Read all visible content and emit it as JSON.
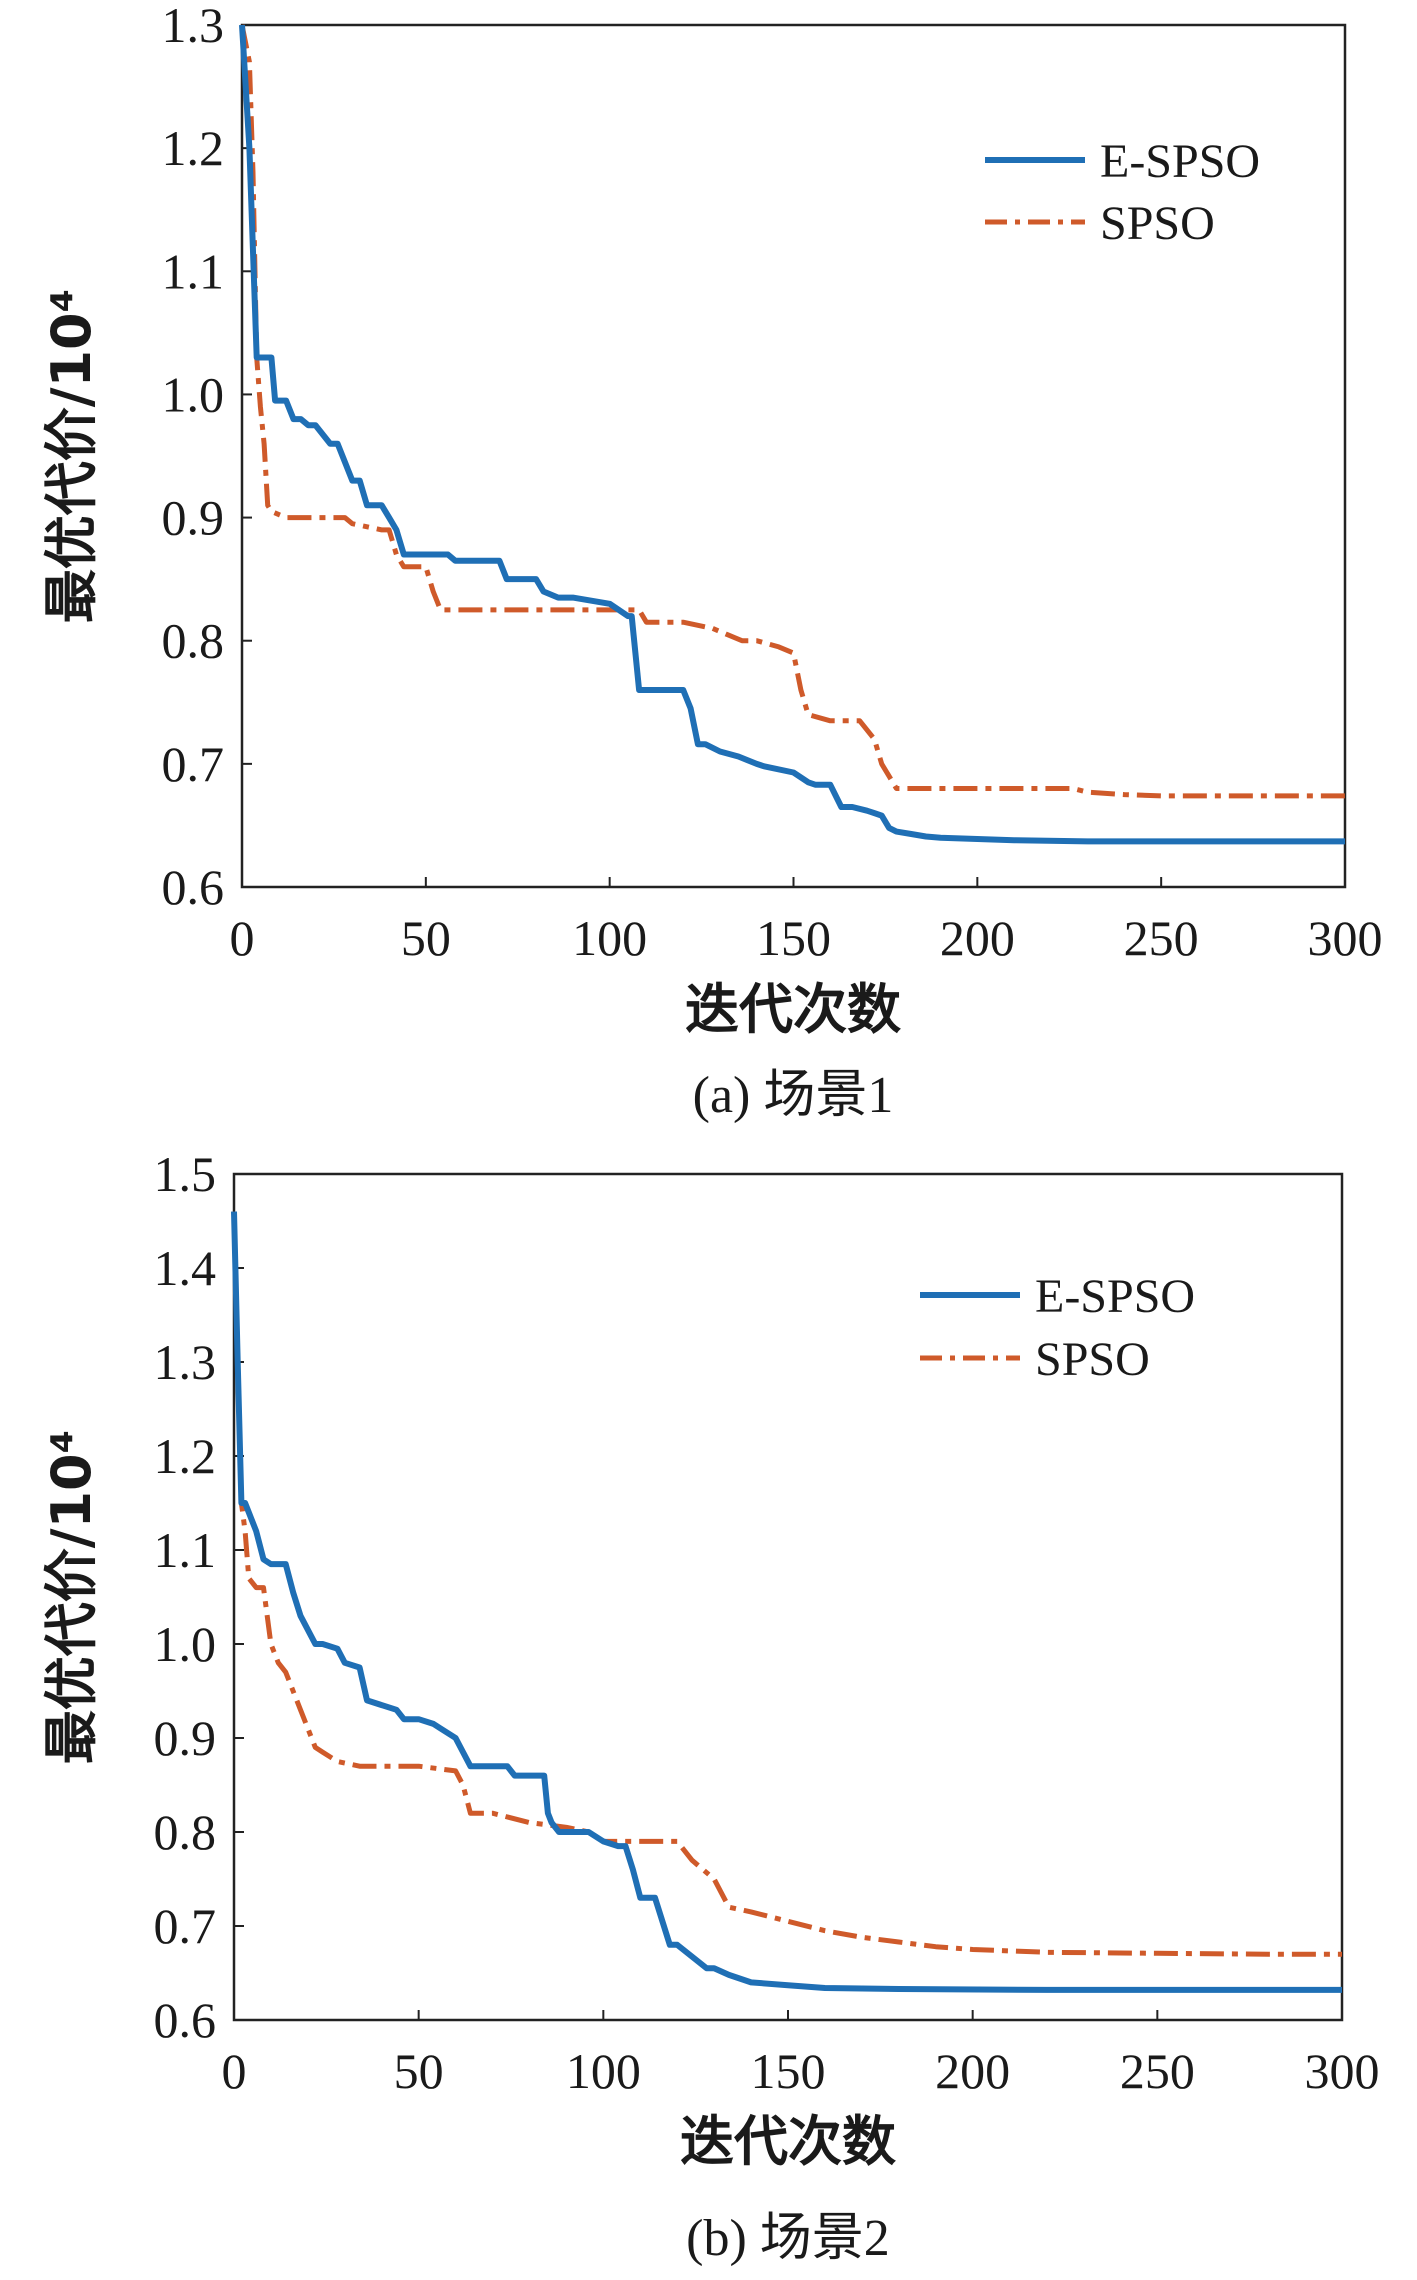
{
  "chart_data": [
    {
      "type": "line",
      "caption": "(a) 场景1",
      "xlabel": "迭代次数",
      "ylabel": "最优代价/10⁴",
      "xlim": [
        0,
        300
      ],
      "ylim": [
        0.6,
        1.3
      ],
      "xticks": [
        "0",
        "50",
        "100",
        "150",
        "200",
        "250",
        "300"
      ],
      "yticks": [
        "0.6",
        "0.7",
        "0.8",
        "0.9",
        "1.0",
        "1.1",
        "1.2",
        "1.3"
      ],
      "legend_position": "top-right",
      "series": [
        {
          "name": "E-SPSO",
          "color": "#1f6fb5",
          "style": "solid",
          "x": [
            0,
            2,
            4,
            6,
            8,
            9,
            12,
            14,
            16,
            18,
            20,
            24,
            26,
            30,
            32,
            34,
            38,
            40,
            42,
            44,
            50,
            56,
            58,
            64,
            70,
            72,
            80,
            82,
            86,
            90,
            100,
            105,
            106,
            107,
            108,
            110,
            120,
            122,
            124,
            126,
            130,
            135,
            140,
            142,
            150,
            154,
            156,
            160,
            163,
            166,
            170,
            172,
            174,
            176,
            178,
            182,
            186,
            190,
            200,
            210,
            230,
            260,
            300
          ],
          "y": [
            1.3,
            1.2,
            1.03,
            1.03,
            1.03,
            0.995,
            0.995,
            0.98,
            0.98,
            0.975,
            0.975,
            0.96,
            0.96,
            0.93,
            0.93,
            0.91,
            0.91,
            0.9,
            0.89,
            0.87,
            0.87,
            0.87,
            0.865,
            0.865,
            0.865,
            0.85,
            0.85,
            0.84,
            0.835,
            0.835,
            0.83,
            0.82,
            0.82,
            0.79,
            0.76,
            0.76,
            0.76,
            0.745,
            0.716,
            0.716,
            0.71,
            0.706,
            0.7,
            0.698,
            0.693,
            0.685,
            0.683,
            0.683,
            0.665,
            0.665,
            0.662,
            0.66,
            0.658,
            0.648,
            0.645,
            0.643,
            0.641,
            0.64,
            0.639,
            0.638,
            0.637,
            0.637,
            0.637
          ]
        },
        {
          "name": "SPSO",
          "color": "#cf5a2a",
          "style": "dashdot",
          "x": [
            0,
            2,
            3,
            4,
            5,
            6,
            7,
            8,
            12,
            20,
            28,
            30,
            38,
            40,
            42,
            44,
            50,
            52,
            54,
            60,
            70,
            80,
            90,
            100,
            108,
            110,
            120,
            128,
            132,
            136,
            140,
            146,
            150,
            152,
            154,
            160,
            168,
            172,
            174,
            176,
            178,
            190,
            210,
            226,
            230,
            240,
            250,
            260,
            280,
            300
          ],
          "y": [
            1.3,
            1.27,
            1.18,
            1.03,
            0.99,
            0.96,
            0.91,
            0.905,
            0.9,
            0.9,
            0.9,
            0.895,
            0.89,
            0.89,
            0.87,
            0.86,
            0.86,
            0.84,
            0.825,
            0.825,
            0.825,
            0.825,
            0.825,
            0.825,
            0.825,
            0.815,
            0.815,
            0.81,
            0.805,
            0.8,
            0.8,
            0.795,
            0.79,
            0.76,
            0.74,
            0.735,
            0.735,
            0.72,
            0.7,
            0.69,
            0.68,
            0.68,
            0.68,
            0.68,
            0.677,
            0.675,
            0.674,
            0.674,
            0.674,
            0.674
          ]
        }
      ]
    },
    {
      "type": "line",
      "caption": "(b) 场景2",
      "xlabel": "迭代次数",
      "ylabel": "最优代价/10⁴",
      "xlim": [
        0,
        300
      ],
      "ylim": [
        0.6,
        1.5
      ],
      "xticks": [
        "0",
        "50",
        "100",
        "150",
        "200",
        "250",
        "300"
      ],
      "yticks": [
        "0.6",
        "0.7",
        "0.8",
        "0.9",
        "1.0",
        "1.1",
        "1.2",
        "1.3",
        "1.4",
        "1.5"
      ],
      "legend_position": "top-right",
      "series": [
        {
          "name": "E-SPSO",
          "color": "#1f6fb5",
          "style": "solid",
          "x": [
            0,
            1,
            2,
            3,
            4,
            6,
            8,
            10,
            14,
            16,
            18,
            22,
            24,
            28,
            30,
            34,
            36,
            40,
            44,
            46,
            50,
            54,
            56,
            60,
            62,
            64,
            74,
            76,
            80,
            84,
            85,
            86,
            88,
            96,
            100,
            104,
            106,
            108,
            110,
            114,
            118,
            120,
            128,
            130,
            134,
            140,
            150,
            160,
            180,
            220,
            300
          ],
          "y": [
            1.46,
            1.3,
            1.15,
            1.15,
            1.14,
            1.12,
            1.09,
            1.085,
            1.085,
            1.055,
            1.03,
            1.0,
            1.0,
            0.995,
            0.98,
            0.975,
            0.94,
            0.935,
            0.93,
            0.92,
            0.92,
            0.915,
            0.91,
            0.9,
            0.885,
            0.87,
            0.87,
            0.86,
            0.86,
            0.86,
            0.82,
            0.81,
            0.8,
            0.8,
            0.79,
            0.785,
            0.785,
            0.76,
            0.73,
            0.73,
            0.68,
            0.68,
            0.655,
            0.655,
            0.648,
            0.64,
            0.637,
            0.634,
            0.633,
            0.632,
            0.632
          ]
        },
        {
          "name": "SPSO",
          "color": "#cf5a2a",
          "style": "dashdot",
          "x": [
            0,
            1,
            2,
            3,
            4,
            6,
            8,
            10,
            12,
            14,
            16,
            18,
            20,
            22,
            24,
            28,
            34,
            40,
            50,
            60,
            62,
            64,
            70,
            80,
            90,
            96,
            100,
            110,
            120,
            124,
            130,
            134,
            140,
            150,
            160,
            170,
            180,
            190,
            200,
            220,
            250,
            280,
            300
          ],
          "y": [
            1.46,
            1.3,
            1.15,
            1.12,
            1.07,
            1.06,
            1.06,
            1.0,
            0.98,
            0.97,
            0.95,
            0.93,
            0.91,
            0.89,
            0.885,
            0.875,
            0.87,
            0.87,
            0.87,
            0.865,
            0.85,
            0.82,
            0.82,
            0.81,
            0.805,
            0.8,
            0.79,
            0.79,
            0.79,
            0.77,
            0.75,
            0.72,
            0.715,
            0.705,
            0.695,
            0.688,
            0.683,
            0.678,
            0.675,
            0.672,
            0.671,
            0.67,
            0.67
          ]
        }
      ]
    }
  ]
}
